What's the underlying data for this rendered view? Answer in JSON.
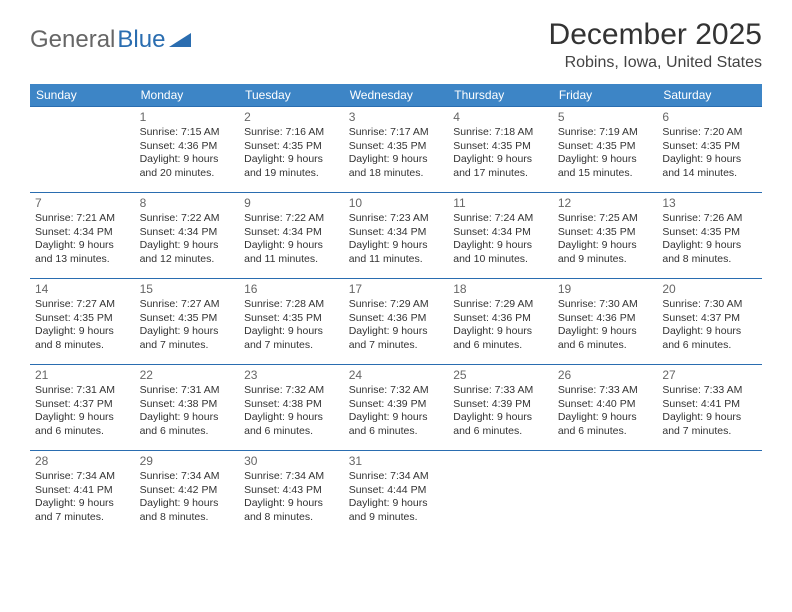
{
  "logo": {
    "text1": "General",
    "text2": "Blue"
  },
  "title": "December 2025",
  "location": "Robins, Iowa, United States",
  "colors": {
    "header_bg": "#3d85c6",
    "header_fg": "#ffffff",
    "row_border": "#2a6db0",
    "daynum": "#666666",
    "body_text": "#333333",
    "logo_gray": "#666666",
    "logo_blue": "#2a6db0"
  },
  "typography": {
    "title_fontsize": 30,
    "location_fontsize": 16,
    "header_fontsize": 12,
    "cell_fontsize": 10.5,
    "daynum_fontsize": 12
  },
  "day_headers": [
    "Sunday",
    "Monday",
    "Tuesday",
    "Wednesday",
    "Thursday",
    "Friday",
    "Saturday"
  ],
  "weeks": [
    [
      null,
      {
        "n": "1",
        "sr": "7:15 AM",
        "ss": "4:36 PM",
        "dl": "9 hours and 20 minutes."
      },
      {
        "n": "2",
        "sr": "7:16 AM",
        "ss": "4:35 PM",
        "dl": "9 hours and 19 minutes."
      },
      {
        "n": "3",
        "sr": "7:17 AM",
        "ss": "4:35 PM",
        "dl": "9 hours and 18 minutes."
      },
      {
        "n": "4",
        "sr": "7:18 AM",
        "ss": "4:35 PM",
        "dl": "9 hours and 17 minutes."
      },
      {
        "n": "5",
        "sr": "7:19 AM",
        "ss": "4:35 PM",
        "dl": "9 hours and 15 minutes."
      },
      {
        "n": "6",
        "sr": "7:20 AM",
        "ss": "4:35 PM",
        "dl": "9 hours and 14 minutes."
      }
    ],
    [
      {
        "n": "7",
        "sr": "7:21 AM",
        "ss": "4:34 PM",
        "dl": "9 hours and 13 minutes."
      },
      {
        "n": "8",
        "sr": "7:22 AM",
        "ss": "4:34 PM",
        "dl": "9 hours and 12 minutes."
      },
      {
        "n": "9",
        "sr": "7:22 AM",
        "ss": "4:34 PM",
        "dl": "9 hours and 11 minutes."
      },
      {
        "n": "10",
        "sr": "7:23 AM",
        "ss": "4:34 PM",
        "dl": "9 hours and 11 minutes."
      },
      {
        "n": "11",
        "sr": "7:24 AM",
        "ss": "4:34 PM",
        "dl": "9 hours and 10 minutes."
      },
      {
        "n": "12",
        "sr": "7:25 AM",
        "ss": "4:35 PM",
        "dl": "9 hours and 9 minutes."
      },
      {
        "n": "13",
        "sr": "7:26 AM",
        "ss": "4:35 PM",
        "dl": "9 hours and 8 minutes."
      }
    ],
    [
      {
        "n": "14",
        "sr": "7:27 AM",
        "ss": "4:35 PM",
        "dl": "9 hours and 8 minutes."
      },
      {
        "n": "15",
        "sr": "7:27 AM",
        "ss": "4:35 PM",
        "dl": "9 hours and 7 minutes."
      },
      {
        "n": "16",
        "sr": "7:28 AM",
        "ss": "4:35 PM",
        "dl": "9 hours and 7 minutes."
      },
      {
        "n": "17",
        "sr": "7:29 AM",
        "ss": "4:36 PM",
        "dl": "9 hours and 7 minutes."
      },
      {
        "n": "18",
        "sr": "7:29 AM",
        "ss": "4:36 PM",
        "dl": "9 hours and 6 minutes."
      },
      {
        "n": "19",
        "sr": "7:30 AM",
        "ss": "4:36 PM",
        "dl": "9 hours and 6 minutes."
      },
      {
        "n": "20",
        "sr": "7:30 AM",
        "ss": "4:37 PM",
        "dl": "9 hours and 6 minutes."
      }
    ],
    [
      {
        "n": "21",
        "sr": "7:31 AM",
        "ss": "4:37 PM",
        "dl": "9 hours and 6 minutes."
      },
      {
        "n": "22",
        "sr": "7:31 AM",
        "ss": "4:38 PM",
        "dl": "9 hours and 6 minutes."
      },
      {
        "n": "23",
        "sr": "7:32 AM",
        "ss": "4:38 PM",
        "dl": "9 hours and 6 minutes."
      },
      {
        "n": "24",
        "sr": "7:32 AM",
        "ss": "4:39 PM",
        "dl": "9 hours and 6 minutes."
      },
      {
        "n": "25",
        "sr": "7:33 AM",
        "ss": "4:39 PM",
        "dl": "9 hours and 6 minutes."
      },
      {
        "n": "26",
        "sr": "7:33 AM",
        "ss": "4:40 PM",
        "dl": "9 hours and 6 minutes."
      },
      {
        "n": "27",
        "sr": "7:33 AM",
        "ss": "4:41 PM",
        "dl": "9 hours and 7 minutes."
      }
    ],
    [
      {
        "n": "28",
        "sr": "7:34 AM",
        "ss": "4:41 PM",
        "dl": "9 hours and 7 minutes."
      },
      {
        "n": "29",
        "sr": "7:34 AM",
        "ss": "4:42 PM",
        "dl": "9 hours and 8 minutes."
      },
      {
        "n": "30",
        "sr": "7:34 AM",
        "ss": "4:43 PM",
        "dl": "9 hours and 8 minutes."
      },
      {
        "n": "31",
        "sr": "7:34 AM",
        "ss": "4:44 PM",
        "dl": "9 hours and 9 minutes."
      },
      null,
      null,
      null
    ]
  ],
  "labels": {
    "sunrise": "Sunrise:",
    "sunset": "Sunset:",
    "daylight": "Daylight:"
  }
}
